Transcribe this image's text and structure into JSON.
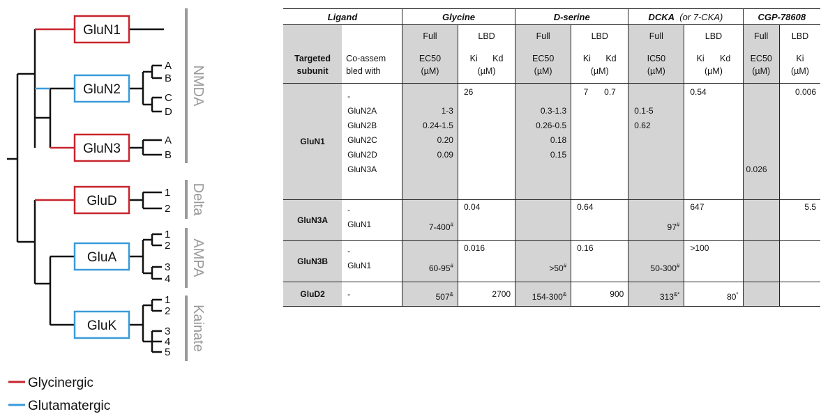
{
  "tree": {
    "nodes": [
      {
        "name": "GluN1",
        "type": "glycinergic"
      },
      {
        "name": "GluN2",
        "type": "glutamatergic"
      },
      {
        "name": "GluN3",
        "type": "glycinergic"
      },
      {
        "name": "GluD",
        "type": "glycinergic"
      },
      {
        "name": "GluA",
        "type": "glutamatergic"
      },
      {
        "name": "GluK",
        "type": "glutamatergic"
      }
    ],
    "subunits": {
      "GluN2": [
        "A",
        "B",
        "C",
        "D"
      ],
      "GluN3": [
        "A",
        "B"
      ],
      "GluD": [
        "1",
        "2"
      ],
      "GluA": [
        "1",
        "2",
        "3",
        "4"
      ],
      "GluK": [
        "1",
        "2",
        "3",
        "4",
        "5"
      ]
    },
    "groups": [
      "NMDA",
      "Delta",
      "AMPA",
      "Kainate"
    ],
    "legend": [
      {
        "label": "Glycinergic",
        "color": "#c8242d"
      },
      {
        "label": "Glutamatergic",
        "color": "#3a9ad9"
      }
    ],
    "colors": {
      "glycinergic": "#c8242d",
      "glutamatergic": "#3a9ad9",
      "group_bar": "#9a9a9a"
    }
  },
  "table": {
    "ligands": [
      "Ligand",
      "Glycine",
      "D-serine",
      "DCKA",
      "(or 7-CKA)",
      "CGP-78608"
    ],
    "types": {
      "full": "Full",
      "lbd": "LBD"
    },
    "header": {
      "targeted": "Targeted subunit",
      "coassembled": "Co-assem bled with",
      "ec50": "EC50",
      "ic50": "IC50",
      "ki": "Ki",
      "kd": "Kd",
      "um": "(µM)"
    },
    "glun1": {
      "subunit": "GluN1",
      "coassembled": [
        "-",
        "GluN2A",
        "GluN2B",
        "GluN2C",
        "GluN2D",
        "GluN3A"
      ],
      "gly_full": [
        "",
        "1-3",
        "0.24-1.5",
        "0.20",
        "0.09",
        ""
      ],
      "gly_lbd": "26",
      "dser_full": [
        "",
        "0.3-1.3",
        "0.26-0.5",
        "0.18",
        "0.15",
        ""
      ],
      "dser_ki": "7",
      "dser_kd": "0.7",
      "dcka_full": [
        "",
        "0.1-5",
        "0.62",
        "",
        "",
        ""
      ],
      "dcka_lbd": "0.54",
      "cgp_full": "0.026",
      "cgp_lbd": "0.006"
    },
    "glun3a": {
      "subunit": "GluN3A",
      "coassembled": [
        "-",
        "GluN1"
      ],
      "gly_full": "7-400",
      "gly_full_mark": "#",
      "gly_lbd": "0.04",
      "dser_lbd": "0.64",
      "dcka_full": "97",
      "dcka_full_mark": "#",
      "dcka_lbd": "647",
      "cgp_lbd": "5.5"
    },
    "glun3b": {
      "subunit": "GluN3B",
      "coassembled": [
        "-",
        "GluN1"
      ],
      "gly_full": "60-95",
      "gly_full_mark": "#",
      "gly_lbd": "0.016",
      "dser_full": ">50",
      "dser_full_mark": "#",
      "dser_lbd": "0.16",
      "dcka_full": "50-300",
      "dcka_full_mark": "#",
      "dcka_lbd": ">100"
    },
    "glud2": {
      "subunit": "GluD2",
      "coassembled": "-",
      "gly_full": "507",
      "gly_full_mark": "&",
      "gly_lbd": "2700",
      "dser_full": "154-300",
      "dser_full_mark": "&",
      "dser_lbd": "900",
      "dcka_full": "313",
      "dcka_full_mark": "&*",
      "dcka_lbd": "80",
      "dcka_lbd_mark": "*"
    }
  }
}
